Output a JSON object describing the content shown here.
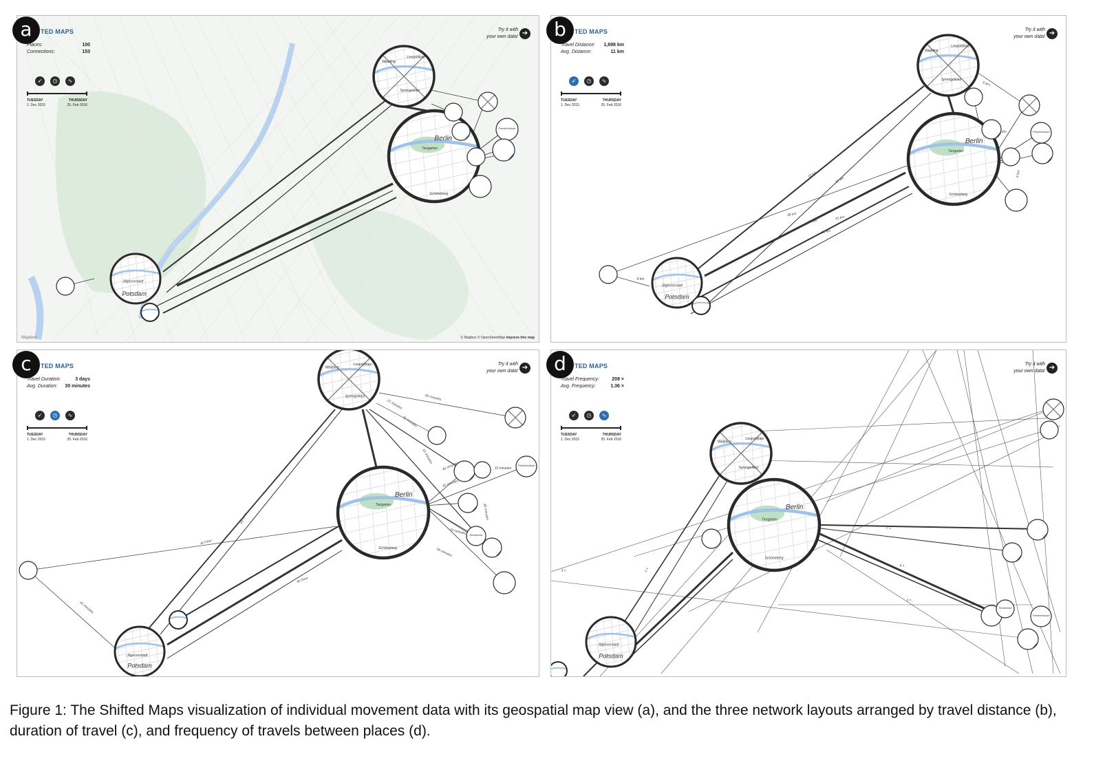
{
  "caption": "Figure 1: The Shifted Maps visualization of individual movement data with its geospatial map view (a), and the three network layouts arranged by travel distance (b), duration of travel (c), and frequency of travels between places (d).",
  "brand": "TED MAPS",
  "try_line1": "Try it with",
  "try_line2": "your own data!",
  "timeline": {
    "start_day": "TUESDAY",
    "start_date": "1. Dec 2015",
    "end_day": "THURSDAY",
    "end_date": "25. Feb 2016"
  },
  "colors": {
    "panel_border": "#bdbdbd",
    "accent_blue": "#2f6db3",
    "water": "#9fc3e8",
    "park": "#bfe0c4"
  },
  "panels": [
    {
      "letter": "a",
      "stat1_label": "Places:",
      "stat1_value": "100",
      "stat2_label": "Connections:",
      "stat2_value": "153",
      "active_mode": 0
    },
    {
      "letter": "b",
      "stat1_label": "Travel Distance:",
      "stat1_value": "1,698 km",
      "stat2_label": "Avg. Distance:",
      "stat2_value": "11 km",
      "active_mode": 0
    },
    {
      "letter": "c",
      "stat1_label": "Travel Duration:",
      "stat1_value": "3 days",
      "stat2_label": "Avg. Duration:",
      "stat2_value": "30 minutes",
      "active_mode": 1
    },
    {
      "letter": "d",
      "stat1_label": "Travel Frequency:",
      "stat1_value": "208 ×",
      "stat2_label": "Avg. Frequency:",
      "stat2_value": "1.36 ×",
      "active_mode": 2
    }
  ],
  "mode_icons": [
    "compass-icon",
    "clock-icon",
    "pulse-icon"
  ],
  "map_attribution": "© Mapbox © OpenStreetMap",
  "map_improve": "Improve this map",
  "map_logo": "Mapbox",
  "place_labels": {
    "berlin": "Berlin",
    "potsdam": "Potsdam",
    "wedding": "Wedding",
    "leopoldkiez": "Leopoldkiez",
    "sprengelkiez": "Sprengelkiez",
    "tiergarten": "Tiergarten",
    "schoeneberg": "Schöneberg",
    "jaegervorstadt": "Jägervorstadt",
    "friedrichshain": "Friedrichshain",
    "reuterkiez": "Reuterkiez"
  },
  "edge_labels": {
    "b": [
      "9 km",
      "18 km",
      "10 km",
      "11 km",
      "19 km",
      "31 km",
      "38 km",
      "41 km",
      "8 km",
      "6 km"
    ],
    "c": [
      "36 minutes",
      "21 minutes",
      "31 minutes",
      "41 minutes",
      "40 minutes",
      "10 minutes",
      "35 minutes",
      "33 minutes",
      "34 minutes",
      "30 minutes",
      "an hour",
      "an hour",
      "an hour",
      "41 minutes"
    ],
    "d": [
      "3 ×",
      "1 ×",
      "2 ×",
      "5 ×"
    ]
  }
}
